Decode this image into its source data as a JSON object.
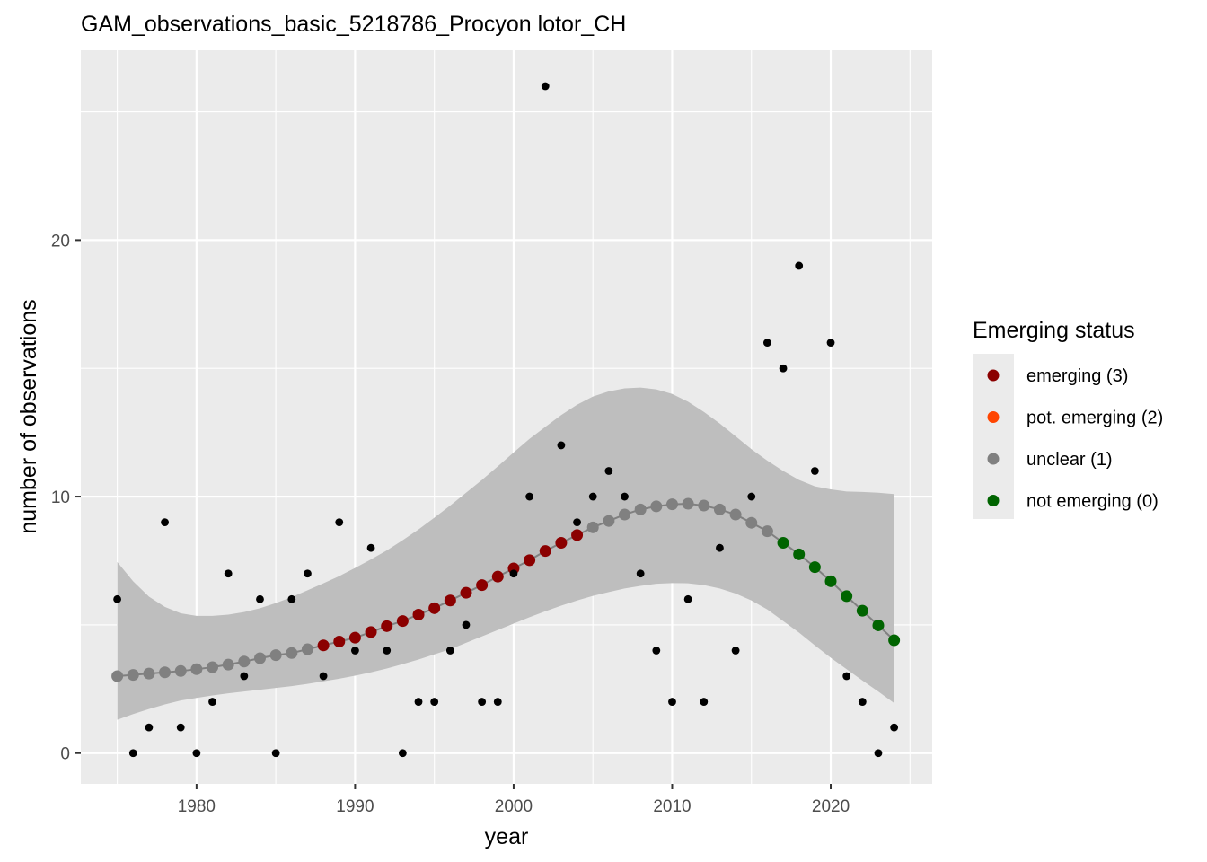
{
  "chart_data": {
    "type": "scatter",
    "title": "GAM_observations_basic_5218786_Procyon lotor_CH",
    "xlabel": "year",
    "ylabel": "number of observations",
    "xlim": [
      1972.7,
      2026.4
    ],
    "ylim": [
      -1.2,
      27.4
    ],
    "x_ticks": [
      1980,
      1990,
      2000,
      2010,
      2020
    ],
    "y_ticks": [
      0,
      10,
      20
    ],
    "grid": true,
    "legend": {
      "title": "Emerging status",
      "placement": "right",
      "entries": [
        {
          "label": "emerging (3)",
          "color": "#8B0000"
        },
        {
          "label": "pot. emerging (2)",
          "color": "#FF4500"
        },
        {
          "label": "unclear (1)",
          "color": "#808080"
        },
        {
          "label": "not emerging (0)",
          "color": "#006400"
        }
      ]
    },
    "colors": {
      "panel": "#EBEBEB",
      "grid": "#FFFFFF",
      "ribbon": "#BEBEBE",
      "line": "#808080",
      "observed": "#000000"
    },
    "observed": {
      "name": "",
      "x": [
        1975,
        1976,
        1977,
        1978,
        1979,
        1980,
        1981,
        1982,
        1983,
        1984,
        1985,
        1986,
        1987,
        1988,
        1989,
        1990,
        1991,
        1992,
        1993,
        1994,
        1995,
        1996,
        1997,
        1998,
        1999,
        2000,
        2001,
        2002,
        2003,
        2004,
        2005,
        2006,
        2007,
        2008,
        2009,
        2010,
        2011,
        2012,
        2013,
        2014,
        2015,
        2016,
        2017,
        2018,
        2019,
        2020,
        2021,
        2022,
        2023,
        2024
      ],
      "y": [
        6,
        0,
        1,
        9,
        1,
        0,
        2,
        7,
        3,
        6,
        0,
        6,
        7,
        3,
        9,
        4,
        8,
        4,
        0,
        2,
        2,
        4,
        5,
        2,
        2,
        7,
        10,
        26,
        12,
        9,
        10,
        11,
        10,
        7,
        4,
        2,
        6,
        2,
        8,
        4,
        10,
        16,
        15,
        19,
        11,
        16,
        3,
        2,
        0,
        1
      ]
    },
    "fitted": {
      "name": "",
      "x": [
        1975,
        1976,
        1977,
        1978,
        1979,
        1980,
        1981,
        1982,
        1983,
        1984,
        1985,
        1986,
        1987,
        1988,
        1989,
        1990,
        1991,
        1992,
        1993,
        1994,
        1995,
        1996,
        1997,
        1998,
        1999,
        2000,
        2001,
        2002,
        2003,
        2004,
        2005,
        2006,
        2007,
        2008,
        2009,
        2010,
        2011,
        2012,
        2013,
        2014,
        2015,
        2016,
        2017,
        2018,
        2019,
        2020,
        2021,
        2022,
        2023,
        2024
      ],
      "y": [
        3.0,
        3.05,
        3.1,
        3.15,
        3.2,
        3.27,
        3.35,
        3.45,
        3.57,
        3.7,
        3.82,
        3.9,
        4.05,
        4.2,
        4.35,
        4.5,
        4.72,
        4.95,
        5.15,
        5.4,
        5.65,
        5.95,
        6.25,
        6.55,
        6.88,
        7.2,
        7.52,
        7.88,
        8.2,
        8.5,
        8.8,
        9.05,
        9.3,
        9.5,
        9.62,
        9.7,
        9.72,
        9.65,
        9.5,
        9.3,
        8.98,
        8.65,
        8.2,
        7.75,
        7.25,
        6.7,
        6.12,
        5.55,
        4.98,
        4.4
      ],
      "status": [
        1,
        1,
        1,
        1,
        1,
        1,
        1,
        1,
        1,
        1,
        1,
        1,
        1,
        3,
        3,
        3,
        3,
        3,
        3,
        3,
        3,
        3,
        3,
        3,
        3,
        3,
        3,
        3,
        3,
        3,
        1,
        1,
        1,
        1,
        1,
        1,
        1,
        1,
        1,
        1,
        1,
        1,
        0,
        0,
        0,
        0,
        0,
        0,
        0,
        0
      ],
      "lower": [
        1.3,
        1.52,
        1.72,
        1.9,
        2.05,
        2.15,
        2.25,
        2.33,
        2.4,
        2.47,
        2.54,
        2.61,
        2.7,
        2.8,
        2.9,
        3.02,
        3.15,
        3.3,
        3.47,
        3.65,
        3.85,
        4.05,
        4.3,
        4.55,
        4.8,
        5.05,
        5.3,
        5.53,
        5.75,
        5.95,
        6.13,
        6.28,
        6.42,
        6.52,
        6.6,
        6.63,
        6.62,
        6.55,
        6.42,
        6.22,
        5.95,
        5.6,
        5.15,
        4.7,
        4.2,
        3.72,
        3.27,
        2.83,
        2.4,
        1.95
      ],
      "upper": [
        7.45,
        6.7,
        6.1,
        5.7,
        5.45,
        5.35,
        5.35,
        5.4,
        5.5,
        5.65,
        5.85,
        6.08,
        6.35,
        6.62,
        6.9,
        7.22,
        7.55,
        7.9,
        8.3,
        8.72,
        9.18,
        9.65,
        10.15,
        10.65,
        11.18,
        11.72,
        12.25,
        12.72,
        13.18,
        13.58,
        13.9,
        14.1,
        14.22,
        14.25,
        14.18,
        14.0,
        13.7,
        13.3,
        12.85,
        12.35,
        11.85,
        11.4,
        11.0,
        10.65,
        10.4,
        10.28,
        10.2,
        10.18,
        10.15,
        10.1
      ]
    }
  }
}
